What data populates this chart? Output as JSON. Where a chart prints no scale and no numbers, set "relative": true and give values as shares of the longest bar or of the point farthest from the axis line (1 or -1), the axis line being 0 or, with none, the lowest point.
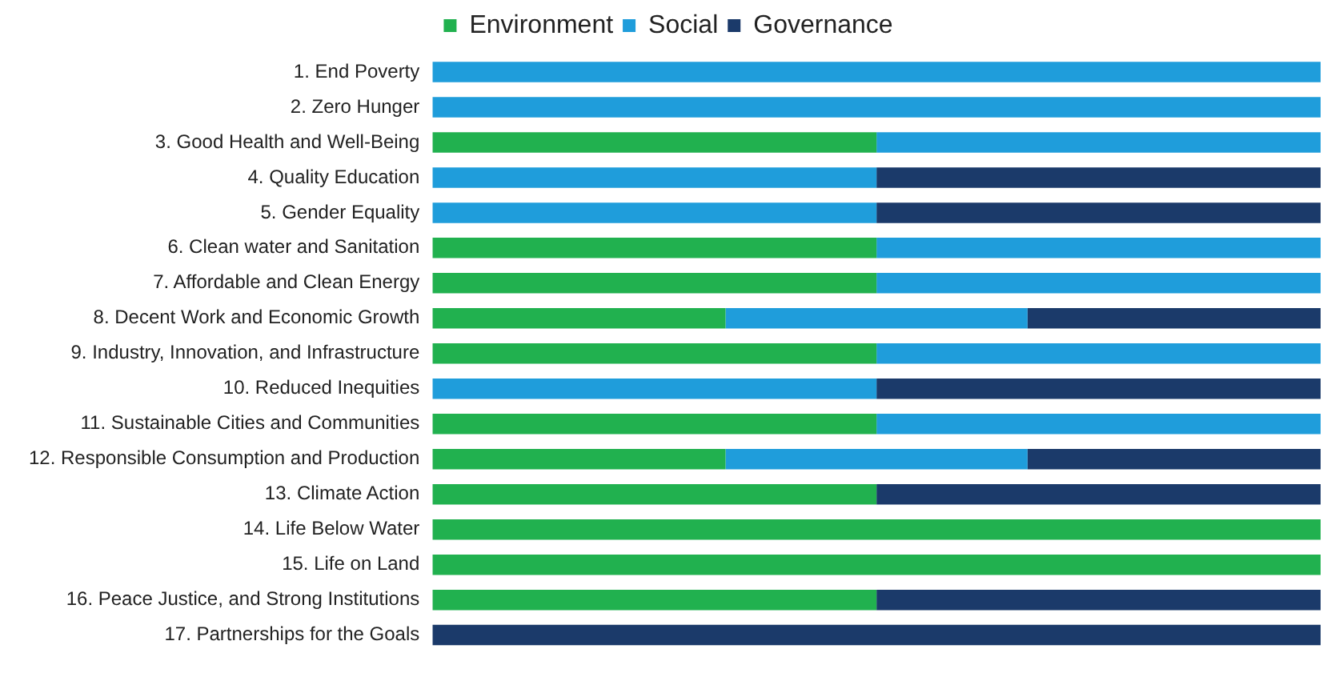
{
  "chart_data": {
    "type": "bar",
    "orientation": "horizontal",
    "stacked": true,
    "relative": true,
    "grid": false,
    "legend": "top",
    "categories": [
      "1. End Poverty",
      "2. Zero Hunger",
      "3. Good Health and Well-Being",
      "4. Quality Education",
      "5. Gender Equality",
      "6. Clean water and Sanitation",
      "7. Affordable and Clean Energy",
      "8. Decent Work and Economic Growth",
      "9. Industry, Innovation, and Infrastructure",
      "10. Reduced Inequities",
      "11. Sustainable Cities and Communities",
      "12. Responsible Consumption and Production",
      "13. Climate Action",
      "14. Life Below Water",
      "15. Life on Land",
      "16. Peace Justice, and Strong Institutions",
      "17. Partnerships for the Goals"
    ],
    "series": [
      {
        "name": "Environment",
        "color": "#21b14f",
        "values": [
          0,
          0,
          0.5,
          0,
          0,
          0.5,
          0.5,
          0.33,
          0.5,
          0,
          0.5,
          0.33,
          0.5,
          1,
          1,
          0.5,
          0
        ]
      },
      {
        "name": "Social",
        "color": "#1f9ddb",
        "values": [
          1,
          1,
          0.5,
          0.5,
          0.5,
          0.5,
          0.5,
          0.34,
          0.5,
          0.5,
          0.5,
          0.34,
          0,
          0,
          0,
          0,
          0
        ]
      },
      {
        "name": "Governance",
        "color": "#1b3a6a",
        "values": [
          0,
          0,
          0,
          0.5,
          0.5,
          0,
          0,
          0.33,
          0,
          0.5,
          0,
          0.33,
          0.5,
          0,
          0,
          0.5,
          1
        ]
      }
    ]
  }
}
